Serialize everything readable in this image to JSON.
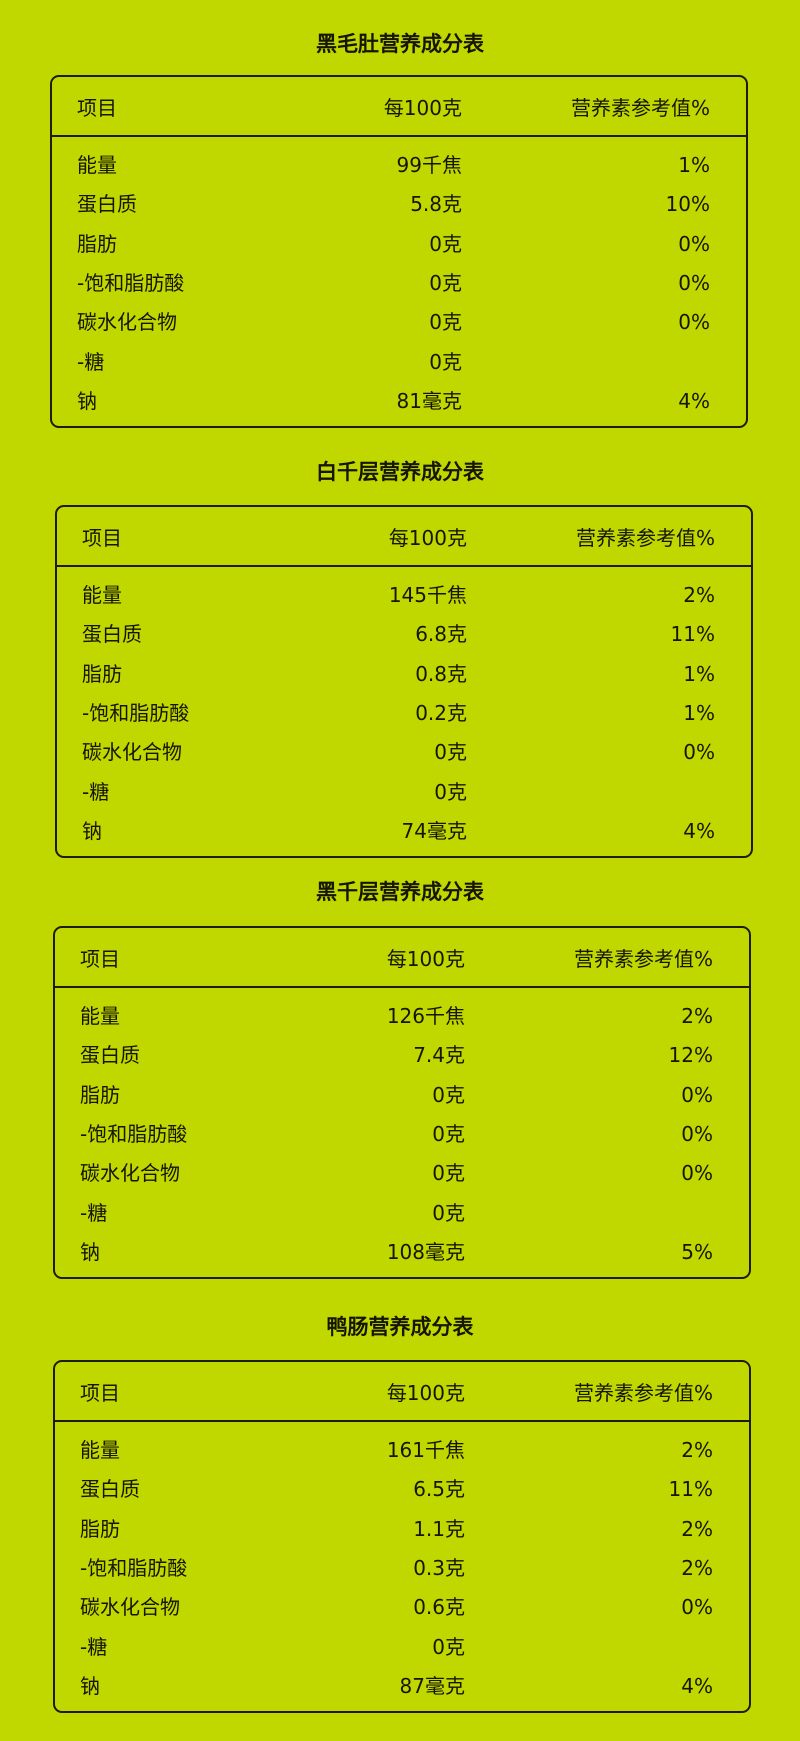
{
  "background_color": "#c0d800",
  "header": {
    "item": "项目",
    "per100": "每100克",
    "nrv": "营养素参考值%"
  },
  "tables": [
    {
      "title": "黑毛肚营养成分表",
      "rows": [
        [
          "能量",
          "99千焦",
          "1%"
        ],
        [
          "蛋白质",
          "5.8克",
          "10%"
        ],
        [
          "脂肪",
          "0克",
          "0%"
        ],
        [
          "-饱和脂肪酸",
          "0克",
          "0%"
        ],
        [
          "碳水化合物",
          "0克",
          "0%"
        ],
        [
          "-糖",
          "0克",
          ""
        ],
        [
          "钠",
          "81毫克",
          "4%"
        ]
      ]
    },
    {
      "title": "白千层营养成分表",
      "rows": [
        [
          "能量",
          "145千焦",
          "2%"
        ],
        [
          "蛋白质",
          "6.8克",
          "11%"
        ],
        [
          "脂肪",
          "0.8克",
          "1%"
        ],
        [
          "-饱和脂肪酸",
          "0.2克",
          "1%"
        ],
        [
          "碳水化合物",
          "0克",
          "0%"
        ],
        [
          "-糖",
          "0克",
          ""
        ],
        [
          "钠",
          "74毫克",
          "4%"
        ]
      ]
    },
    {
      "title": "黑千层营养成分表",
      "rows": [
        [
          "能量",
          "126千焦",
          "2%"
        ],
        [
          "蛋白质",
          "7.4克",
          "12%"
        ],
        [
          "脂肪",
          "0克",
          "0%"
        ],
        [
          "-饱和脂肪酸",
          "0克",
          "0%"
        ],
        [
          "碳水化合物",
          "0克",
          "0%"
        ],
        [
          "-糖",
          "0克",
          ""
        ],
        [
          "钠",
          "108毫克",
          "5%"
        ]
      ]
    },
    {
      "title": "鸭肠营养成分表",
      "rows": [
        [
          "能量",
          "161千焦",
          "2%"
        ],
        [
          "蛋白质",
          "6.5克",
          "11%"
        ],
        [
          "脂肪",
          "1.1克",
          "2%"
        ],
        [
          "-饱和脂肪酸",
          "0.3克",
          "2%"
        ],
        [
          "碳水化合物",
          "0.6克",
          "0%"
        ],
        [
          "-糖",
          "0克",
          ""
        ],
        [
          "钠",
          "87毫克",
          "4%"
        ]
      ]
    }
  ]
}
